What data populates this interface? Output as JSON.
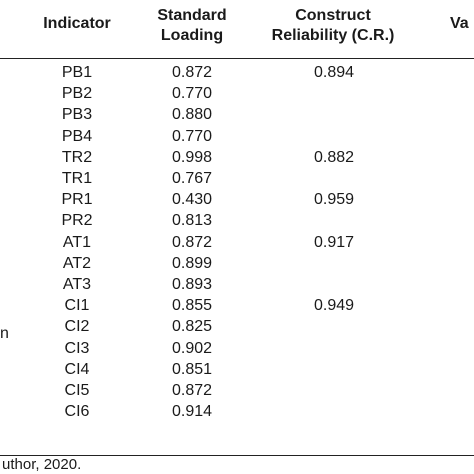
{
  "table": {
    "headers": {
      "indicator": "Indicator",
      "loading_line1": "Standard",
      "loading_line2": "Loading",
      "cr_line1": "Construct",
      "cr_line2": "Reliability (C.R.)",
      "clipped_right": "Va"
    },
    "left_clipped_text": "n",
    "rows": [
      {
        "indicator": "PB1",
        "loading": "0.872",
        "cr": "0.894"
      },
      {
        "indicator": "PB2",
        "loading": "0.770",
        "cr": ""
      },
      {
        "indicator": "PB3",
        "loading": "0.880",
        "cr": ""
      },
      {
        "indicator": "PB4",
        "loading": "0.770",
        "cr": ""
      },
      {
        "indicator": "TR2",
        "loading": "0.998",
        "cr": "0.882"
      },
      {
        "indicator": "TR1",
        "loading": "0.767",
        "cr": ""
      },
      {
        "indicator": "PR1",
        "loading": "0.430",
        "cr": "0.959"
      },
      {
        "indicator": "PR2",
        "loading": "0.813",
        "cr": ""
      },
      {
        "indicator": "AT1",
        "loading": "0.872",
        "cr": "0.917"
      },
      {
        "indicator": "AT2",
        "loading": "0.899",
        "cr": ""
      },
      {
        "indicator": "AT3",
        "loading": "0.893",
        "cr": ""
      },
      {
        "indicator": "CI1",
        "loading": "0.855",
        "cr": "0.949"
      },
      {
        "indicator": "CI2",
        "loading": "0.825",
        "cr": ""
      },
      {
        "indicator": "CI3",
        "loading": "0.902",
        "cr": ""
      },
      {
        "indicator": "CI4",
        "loading": "0.851",
        "cr": ""
      },
      {
        "indicator": "CI5",
        "loading": "0.872",
        "cr": ""
      },
      {
        "indicator": "CI6",
        "loading": "0.914",
        "cr": ""
      }
    ]
  },
  "source_note": "uthor, 2020."
}
